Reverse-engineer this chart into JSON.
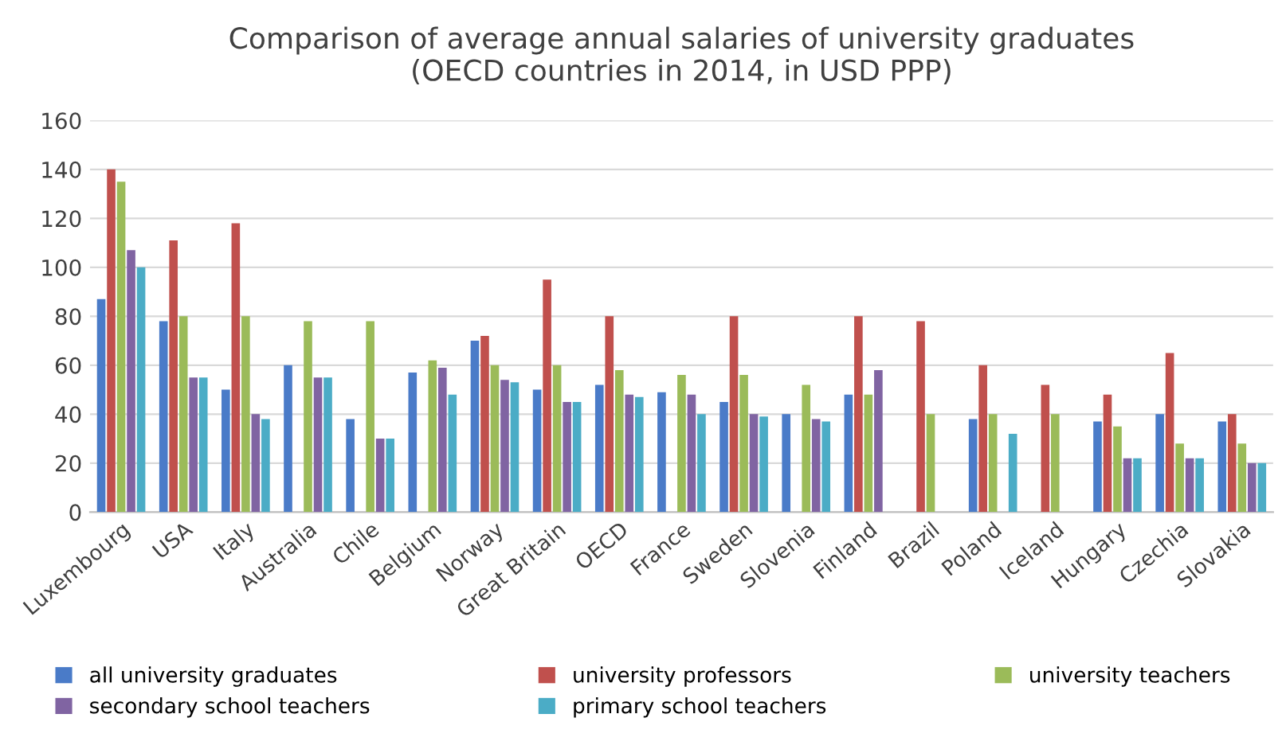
{
  "chart_data": {
    "type": "bar",
    "title": "Comparison of average annual salaries of university graduates\n(OECD countries in 2014, in USD PPP)",
    "categories": [
      "Luxembourg",
      "USA",
      "Italy",
      "Australia",
      "Chile",
      "Belgium",
      "Norway",
      "Great Britain",
      "OECD",
      "France",
      "Sweden",
      "Slovenia",
      "Finland",
      "Brazil",
      "Poland",
      "Iceland",
      "Hungary",
      "Czechia",
      "Slovakia"
    ],
    "series": [
      {
        "name": "all university graduates",
        "color": "#4a7bc8",
        "values": [
          87,
          78,
          50,
          60,
          38,
          57,
          70,
          50,
          52,
          49,
          45,
          40,
          48,
          null,
          38,
          null,
          37,
          40,
          37
        ]
      },
      {
        "name": "university professors",
        "color": "#c0504d",
        "values": [
          140,
          111,
          118,
          null,
          null,
          null,
          72,
          95,
          80,
          null,
          80,
          null,
          80,
          78,
          60,
          52,
          48,
          65,
          40
        ]
      },
      {
        "name": "university teachers",
        "color": "#9bbb59",
        "values": [
          135,
          80,
          80,
          78,
          78,
          62,
          60,
          60,
          58,
          56,
          56,
          52,
          48,
          40,
          40,
          40,
          35,
          28,
          28
        ]
      },
      {
        "name": "secondary school teachers",
        "color": "#8064a2",
        "values": [
          107,
          55,
          40,
          55,
          30,
          59,
          54,
          45,
          48,
          48,
          40,
          38,
          58,
          null,
          null,
          null,
          22,
          22,
          20
        ]
      },
      {
        "name": "primary school teachers",
        "color": "#4bacc6",
        "values": [
          100,
          55,
          38,
          55,
          30,
          48,
          53,
          45,
          47,
          40,
          39,
          37,
          null,
          null,
          32,
          null,
          22,
          22,
          20
        ]
      }
    ],
    "ylim": [
      0,
      160
    ],
    "yticks": [
      0,
      20,
      40,
      60,
      80,
      100,
      120,
      140,
      160
    ],
    "grid": "y",
    "legend": "bottom"
  }
}
